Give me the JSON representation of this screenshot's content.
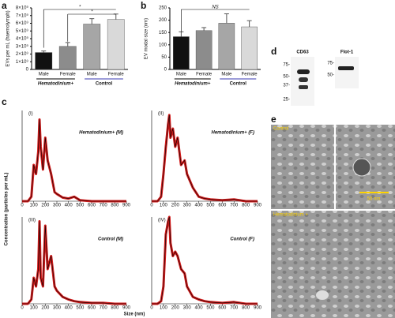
{
  "chart_data": [
    {
      "type": "bar",
      "panel": "a",
      "ylabel": "EVs per mL (haemolymph)",
      "categories": [
        "Male",
        "Female",
        "Male",
        "Female"
      ],
      "groups": [
        "Hematodinium+",
        "Control"
      ],
      "values": [
        2200000000,
        3000000000,
        5900000000,
        6500000000
      ],
      "errors": [
        200000000,
        500000000,
        700000000,
        700000000
      ],
      "colors": [
        "#111111",
        "#8c8c8c",
        "#a6a6a6",
        "#d9d9d9"
      ],
      "annotations": [
        "*",
        "*"
      ],
      "ylim": [
        0,
        8000000000
      ],
      "yticks": [
        0,
        {
          "value": 1000000000,
          "label": "1×10⁹"
        },
        {
          "value": 2000000000,
          "label": "2×10⁹"
        },
        {
          "value": 3000000000,
          "label": "3×10⁹"
        },
        {
          "value": 4000000000,
          "label": "4×10⁹"
        },
        {
          "value": 5000000000,
          "label": "5×10⁹"
        },
        {
          "value": 6000000000,
          "label": "6×10⁹"
        },
        {
          "value": 7000000000,
          "label": "7×10⁹"
        },
        {
          "value": 8000000000,
          "label": "8×10⁹"
        }
      ]
    },
    {
      "type": "bar",
      "panel": "b",
      "ylabel": "EV modal size (nm)",
      "categories": [
        "Male",
        "Female",
        "Male",
        "Female"
      ],
      "groups": [
        "Hematodinium+",
        "Control"
      ],
      "values": [
        133,
        158,
        188,
        173
      ],
      "errors": [
        20,
        12,
        38,
        25
      ],
      "colors": [
        "#111111",
        "#8c8c8c",
        "#a6a6a6",
        "#d9d9d9"
      ],
      "annotations": [
        "NS"
      ],
      "ylim": [
        0,
        250
      ],
      "yticks": [
        0,
        50,
        100,
        150,
        200,
        250
      ]
    },
    {
      "type": "line",
      "title": "(I)",
      "subtitle": "Hematodinium+ (M)",
      "x": [
        0,
        50,
        80,
        100,
        120,
        140,
        150,
        160,
        180,
        200,
        220,
        250,
        280,
        300,
        350,
        400,
        450,
        500,
        600,
        700,
        800,
        900
      ],
      "values": [
        0,
        0,
        5,
        40,
        30,
        55,
        90,
        60,
        35,
        70,
        45,
        30,
        10,
        8,
        4,
        3,
        5,
        1,
        0,
        0,
        0,
        0
      ],
      "color": "#d11a1a",
      "xlim": [
        0,
        900
      ],
      "ylim": [
        0,
        100
      ],
      "xticks": [
        0,
        100,
        200,
        300,
        400,
        500,
        600,
        700,
        800,
        900
      ]
    },
    {
      "type": "line",
      "title": "(II)",
      "subtitle": "Hematodinium+ (F)",
      "x": [
        0,
        50,
        80,
        100,
        120,
        140,
        150,
        160,
        180,
        200,
        220,
        250,
        280,
        300,
        350,
        400,
        450,
        500,
        600,
        700,
        800,
        900
      ],
      "values": [
        0,
        0,
        5,
        30,
        60,
        85,
        95,
        70,
        80,
        60,
        70,
        40,
        45,
        30,
        15,
        5,
        3,
        2,
        1,
        2,
        0,
        0
      ],
      "color": "#d11a1a",
      "xlim": [
        0,
        900
      ],
      "ylim": [
        0,
        100
      ],
      "xticks": [
        0,
        100,
        200,
        300,
        400,
        500,
        600,
        700,
        800,
        900
      ]
    },
    {
      "type": "line",
      "title": "(III)",
      "subtitle": "Control (M)",
      "x": [
        0,
        50,
        80,
        100,
        120,
        140,
        150,
        160,
        180,
        200,
        220,
        250,
        280,
        300,
        350,
        400,
        450,
        500,
        600,
        700,
        800,
        900
      ],
      "values": [
        0,
        0,
        5,
        30,
        20,
        40,
        95,
        30,
        20,
        90,
        40,
        55,
        20,
        15,
        8,
        5,
        3,
        2,
        1,
        1,
        0,
        0
      ],
      "color": "#d11a1a",
      "xlim": [
        0,
        900
      ],
      "ylim": [
        0,
        100
      ],
      "xticks": [
        0,
        100,
        200,
        300,
        400,
        500,
        600,
        700,
        800,
        900
      ]
    },
    {
      "type": "line",
      "title": "(IV)",
      "subtitle": "Control (F)",
      "x": [
        0,
        50,
        80,
        100,
        120,
        140,
        150,
        160,
        180,
        200,
        220,
        250,
        280,
        300,
        350,
        400,
        450,
        500,
        600,
        700,
        800,
        900
      ],
      "values": [
        0,
        0,
        3,
        20,
        80,
        95,
        100,
        70,
        55,
        60,
        55,
        40,
        35,
        20,
        8,
        5,
        3,
        2,
        1,
        2,
        0,
        0
      ],
      "color": "#d11a1a",
      "xlim": [
        0,
        900
      ],
      "ylim": [
        0,
        100
      ],
      "xticks": [
        0,
        100,
        200,
        300,
        400,
        500,
        600,
        700,
        800,
        900
      ]
    }
  ],
  "panel_c": {
    "label": "c",
    "ylabel": "Concentration (particles per mL)",
    "xlabel": "Size (nm)"
  },
  "panel_d": {
    "label": "d",
    "blots": [
      {
        "name": "CD63",
        "markers": [
          "75-",
          "50-",
          "37-",
          "25-"
        ]
      },
      {
        "name": "Flot-1",
        "markers": [
          "75-",
          "50-"
        ]
      }
    ]
  },
  "panel_e": {
    "label": "e",
    "top_label": "Control",
    "bottom_label": "Hematodinium +",
    "scale": "50 nm"
  }
}
